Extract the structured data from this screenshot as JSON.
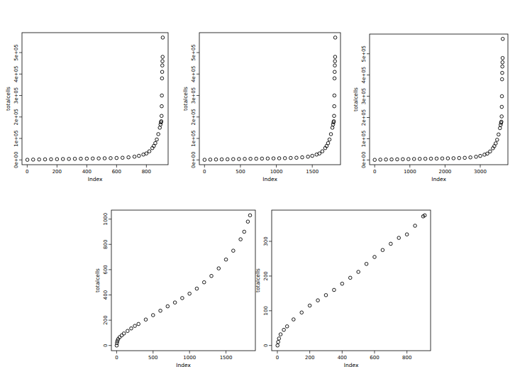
{
  "chart_data": [
    {
      "type": "scatter",
      "xlabel": "Index",
      "ylabel": "totalcells",
      "marker": "circle",
      "color": "#000000",
      "x": [
        1,
        40,
        80,
        120,
        160,
        200,
        240,
        280,
        320,
        360,
        400,
        440,
        480,
        520,
        560,
        600,
        640,
        680,
        720,
        750,
        780,
        800,
        820,
        840,
        850,
        860,
        870,
        880,
        890,
        895,
        898,
        900,
        902,
        903,
        904,
        905,
        906,
        907,
        908,
        909,
        910
      ],
      "values": [
        500,
        1500,
        2000,
        2500,
        3000,
        3500,
        4000,
        4500,
        5000,
        5500,
        6000,
        6500,
        7000,
        7500,
        8000,
        9000,
        10000,
        12000,
        15000,
        19000,
        25000,
        30000,
        40000,
        55000,
        65000,
        78000,
        95000,
        120000,
        150000,
        165000,
        175000,
        180000,
        205000,
        250000,
        300000,
        380000,
        410000,
        440000,
        460000,
        480000,
        570000
      ],
      "xlim": [
        -35,
        946
      ],
      "ylim": [
        -22280,
        592780
      ],
      "xticks": [
        0,
        200,
        400,
        600,
        800
      ],
      "yticks": [
        {
          "value": 0,
          "label": "0e+00"
        },
        {
          "value": 100000,
          "label": "1e+05"
        },
        {
          "value": 200000,
          "label": "2e+05"
        },
        {
          "value": 300000,
          "label": "3e+05"
        },
        {
          "value": 400000,
          "label": "4e+05"
        },
        {
          "value": 500000,
          "label": "5e+05"
        }
      ]
    },
    {
      "type": "scatter",
      "xlabel": "Index",
      "ylabel": "totalcells",
      "marker": "circle",
      "color": "#000000",
      "x": [
        1,
        80,
        160,
        240,
        320,
        400,
        480,
        560,
        640,
        720,
        800,
        880,
        960,
        1040,
        1120,
        1200,
        1280,
        1360,
        1440,
        1500,
        1560,
        1600,
        1640,
        1680,
        1700,
        1720,
        1740,
        1760,
        1780,
        1790,
        1796,
        1800,
        1804,
        1806,
        1808,
        1810,
        1812,
        1814,
        1816,
        1818,
        1820
      ],
      "values": [
        500,
        1500,
        2000,
        2500,
        3000,
        3500,
        4000,
        4500,
        5000,
        5500,
        6000,
        6500,
        7000,
        7500,
        8000,
        9000,
        10000,
        12000,
        15000,
        19000,
        25000,
        30000,
        40000,
        55000,
        65000,
        78000,
        95000,
        120000,
        150000,
        165000,
        175000,
        180000,
        205000,
        250000,
        300000,
        380000,
        410000,
        440000,
        460000,
        480000,
        570000
      ],
      "xlim": [
        -72,
        1893
      ],
      "ylim": [
        -22280,
        592780
      ],
      "xticks": [
        0,
        500,
        1000,
        1500
      ],
      "yticks": [
        {
          "value": 0,
          "label": "0e+00"
        },
        {
          "value": 100000,
          "label": "1e+05"
        },
        {
          "value": 200000,
          "label": "2e+05"
        },
        {
          "value": 300000,
          "label": "3e+05"
        },
        {
          "value": 400000,
          "label": "4e+05"
        },
        {
          "value": 500000,
          "label": "5e+05"
        }
      ]
    },
    {
      "type": "scatter",
      "xlabel": "Index",
      "ylabel": "totalcells",
      "marker": "circle",
      "color": "#000000",
      "x": [
        1,
        160,
        320,
        480,
        640,
        800,
        960,
        1120,
        1280,
        1440,
        1600,
        1760,
        1920,
        2080,
        2240,
        2400,
        2560,
        2720,
        2880,
        3000,
        3120,
        3200,
        3280,
        3360,
        3400,
        3440,
        3480,
        3520,
        3560,
        3580,
        3592,
        3600,
        3608,
        3612,
        3616,
        3620,
        3624,
        3628,
        3632,
        3636,
        3640
      ],
      "values": [
        500,
        1500,
        2000,
        2500,
        3000,
        3500,
        4000,
        4500,
        5000,
        5500,
        6000,
        6500,
        7000,
        7500,
        8000,
        9000,
        10000,
        12000,
        15000,
        19000,
        25000,
        30000,
        40000,
        55000,
        65000,
        78000,
        95000,
        120000,
        150000,
        165000,
        175000,
        180000,
        205000,
        250000,
        300000,
        380000,
        410000,
        440000,
        460000,
        480000,
        570000
      ],
      "xlim": [
        -145,
        3786
      ],
      "ylim": [
        -22280,
        592780
      ],
      "xticks": [
        0,
        1000,
        2000,
        3000
      ],
      "yticks": [
        {
          "value": 0,
          "label": "0e+00"
        },
        {
          "value": 100000,
          "label": "1e+05"
        },
        {
          "value": 200000,
          "label": "2e+05"
        },
        {
          "value": 300000,
          "label": "3e+05"
        },
        {
          "value": 400000,
          "label": "4e+05"
        },
        {
          "value": 500000,
          "label": "5e+05"
        }
      ]
    },
    {
      "type": "scatter",
      "xlabel": "Index",
      "ylabel": "totalcells",
      "marker": "circle",
      "color": "#000000",
      "x": [
        1,
        5,
        10,
        20,
        40,
        70,
        100,
        150,
        200,
        250,
        300,
        400,
        500,
        600,
        700,
        800,
        900,
        1000,
        1100,
        1200,
        1300,
        1400,
        1500,
        1600,
        1700,
        1750,
        1800,
        1830
      ],
      "values": [
        0,
        20,
        35,
        50,
        65,
        80,
        95,
        115,
        135,
        155,
        170,
        205,
        240,
        275,
        310,
        340,
        375,
        410,
        450,
        500,
        550,
        610,
        680,
        750,
        840,
        900,
        980,
        1030
      ],
      "xlim": [
        -72,
        1903
      ],
      "ylim": [
        -41,
        1071
      ],
      "xticks": [
        0,
        500,
        1000,
        1500
      ],
      "yticks": [
        0,
        200,
        400,
        600,
        800,
        1000
      ]
    },
    {
      "type": "scatter",
      "xlabel": "Index",
      "ylabel": "totalcells",
      "marker": "circle",
      "color": "#000000",
      "x": [
        1,
        5,
        10,
        20,
        40,
        60,
        100,
        150,
        200,
        250,
        300,
        350,
        400,
        450,
        500,
        550,
        600,
        650,
        700,
        750,
        800,
        850,
        900,
        910
      ],
      "values": [
        0,
        10,
        20,
        32,
        45,
        55,
        75,
        95,
        115,
        130,
        145,
        160,
        178,
        195,
        212,
        235,
        255,
        275,
        293,
        310,
        320,
        345,
        372,
        375
      ],
      "xlim": [
        -35,
        946
      ],
      "ylim": [
        -15,
        390
      ],
      "xticks": [
        0,
        200,
        400,
        600,
        800
      ],
      "yticks": [
        0,
        100,
        200,
        300
      ]
    }
  ]
}
